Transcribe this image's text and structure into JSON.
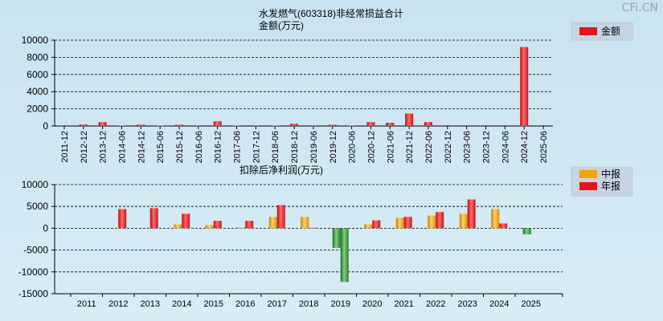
{
  "watermark": "CFi.CN",
  "chart_data": [
    {
      "type": "bar",
      "title": "水发燃气(603318)非经常损益合计",
      "subtitle": "金额(万元)",
      "ylim": [
        0,
        10000
      ],
      "yticks": [
        0,
        2000,
        4000,
        6000,
        8000,
        10000
      ],
      "grid": true,
      "legend_position": "right",
      "categories": [
        "2011-12",
        "2012-12",
        "2013-12",
        "2014-06",
        "2014-12",
        "2015-06",
        "2015-12",
        "2016-06",
        "2016-12",
        "2017-06",
        "2017-12",
        "2018-06",
        "2018-12",
        "2019-06",
        "2019-12",
        "2020-06",
        "2020-12",
        "2021-06",
        "2021-12",
        "2022-06",
        "2022-12",
        "2023-06",
        "2023-12",
        "2024-06",
        "2024-12",
        "2025-06"
      ],
      "series": [
        {
          "name": "金额",
          "color": "#e8141c",
          "values": [
            0,
            180,
            450,
            60,
            160,
            50,
            150,
            80,
            550,
            60,
            80,
            60,
            260,
            80,
            150,
            60,
            450,
            380,
            1450,
            450,
            0,
            0,
            0,
            0,
            9200,
            0
          ]
        }
      ]
    },
    {
      "type": "bar",
      "title": "扣除后净利润(万元)",
      "ylim": [
        -15000,
        10000
      ],
      "yticks": [
        -15000,
        -10000,
        -5000,
        0,
        5000,
        10000
      ],
      "grid": true,
      "legend_position": "right",
      "categories": [
        "2011",
        "2012",
        "2013",
        "2014",
        "2015",
        "2016",
        "2017",
        "2018",
        "2019",
        "2020",
        "2021",
        "2022",
        "2023",
        "2024",
        "2025"
      ],
      "series": [
        {
          "name": "中报",
          "color": "#f5a300",
          "values": [
            null,
            null,
            null,
            900,
            700,
            200,
            2600,
            2600,
            -4500,
            900,
            2400,
            2900,
            3300,
            4400,
            -1400
          ]
        },
        {
          "name": "年报",
          "color": "#e8141c",
          "values": [
            null,
            4400,
            4600,
            3300,
            1700,
            1700,
            5300,
            100,
            -12300,
            1800,
            2600,
            3700,
            6600,
            1100,
            null
          ]
        }
      ]
    }
  ]
}
